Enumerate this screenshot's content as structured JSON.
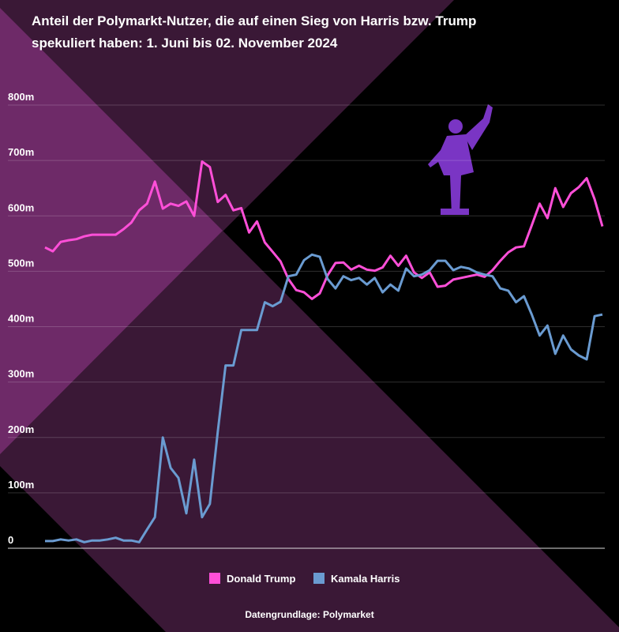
{
  "chart_data": {
    "type": "line",
    "title": "Anteil der Polymarkt-Nutzer, die auf einen Sieg von Harris bzw. Trump spekuliert haben: 1. Juni bis 02. November 2024",
    "source": "Datengrundlage: Polymarket",
    "ylim": [
      0,
      800000000.0
    ],
    "yticks": [
      0,
      {
        "value": 100000000.0,
        "label": "100m"
      },
      {
        "value": 200000000.0,
        "label": "200m"
      },
      {
        "value": 300000000.0,
        "label": "300m"
      },
      {
        "value": 400000000.0,
        "label": "400m"
      },
      {
        "value": 500000000.0,
        "label": "500m"
      },
      {
        "value": 600000000.0,
        "label": "600m"
      },
      {
        "value": 700000000.0,
        "label": "700m"
      },
      {
        "value": 800000000.0,
        "label": "800m"
      }
    ],
    "grid": true,
    "legend": "bottom",
    "series": [
      {
        "name": "Donald Trump",
        "color": "#ff4fd8",
        "values": [
          543000000.0,
          536000000.0,
          553000000.0,
          556000000.0,
          558000000.0,
          563000000.0,
          566000000.0,
          566000000.0,
          566000000.0,
          566000000.0,
          576000000.0,
          588000000.0,
          610000000.0,
          622000000.0,
          662000000.0,
          613000000.0,
          622000000.0,
          618000000.0,
          626000000.0,
          600000000.0,
          698000000.0,
          688000000.0,
          625000000.0,
          638000000.0,
          610000000.0,
          614000000.0,
          570000000.0,
          590000000.0,
          552000000.0,
          535000000.0,
          518000000.0,
          486000000.0,
          466000000.0,
          462000000.0,
          450000000.0,
          460000000.0,
          493000000.0,
          515000000.0,
          516000000.0,
          503000000.0,
          510000000.0,
          503000000.0,
          501000000.0,
          507000000.0,
          528000000.0,
          510000000.0,
          528000000.0,
          498000000.0,
          488000000.0,
          498000000.0,
          472000000.0,
          474000000.0,
          485000000.0,
          488000000.0,
          491000000.0,
          494000000.0,
          490000000.0,
          502000000.0,
          519000000.0,
          534000000.0,
          543000000.0,
          545000000.0,
          583000000.0,
          622000000.0,
          596000000.0,
          650000000.0,
          616000000.0,
          641000000.0,
          652000000.0,
          668000000.0,
          630000000.0,
          581000000.0
        ]
      },
      {
        "name": "Kamala Harris",
        "color": "#6a9bd1",
        "values": [
          13000000.0,
          13000000.0,
          16000000.0,
          14000000.0,
          16000000.0,
          11000000.0,
          14000000.0,
          14000000.0,
          16000000.0,
          19000000.0,
          14000000.0,
          14000000.0,
          11000000.0,
          34000000.0,
          56000000.0,
          200000000.0,
          145000000.0,
          127000000.0,
          63000000.0,
          160000000.0,
          56000000.0,
          80000000.0,
          210000000.0,
          330000000.0,
          330000000.0,
          394000000.0,
          394000000.0,
          394000000.0,
          444000000.0,
          437000000.0,
          445000000.0,
          491000000.0,
          494000000.0,
          520000000.0,
          530000000.0,
          526000000.0,
          486000000.0,
          469000000.0,
          491000000.0,
          484000000.0,
          488000000.0,
          476000000.0,
          488000000.0,
          462000000.0,
          476000000.0,
          465000000.0,
          505000000.0,
          491000000.0,
          494000000.0,
          502000000.0,
          519000000.0,
          519000000.0,
          502000000.0,
          508000000.0,
          505000000.0,
          498000000.0,
          494000000.0,
          491000000.0,
          469000000.0,
          465000000.0,
          444000000.0,
          455000000.0,
          422000000.0,
          384000000.0,
          402000000.0,
          351000000.0,
          384000000.0,
          359000000.0,
          348000000.0,
          341000000.0,
          419000000.0,
          422000000.0
        ]
      }
    ]
  }
}
